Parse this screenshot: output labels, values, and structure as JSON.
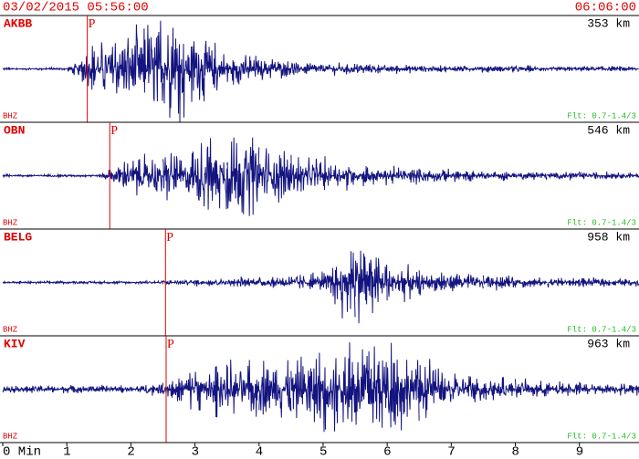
{
  "header": {
    "start": "03/02/2015 05:56:00",
    "end": "06:06:00"
  },
  "chart_data": {
    "type": "seismogram",
    "xlim": [
      0,
      9.93
    ],
    "xticks": [
      {
        "value": 0,
        "label": "0 Min"
      },
      1,
      2,
      3,
      4,
      5,
      6,
      7,
      8,
      9
    ],
    "x": [
      0,
      0.5,
      1,
      1.5,
      2,
      2.5,
      3,
      3.5,
      4,
      4.5,
      5,
      5.5,
      6,
      6.5,
      7,
      7.5,
      8,
      8.5,
      9,
      9.5
    ],
    "color": "#141480",
    "traces": [
      {
        "station": "AKBB",
        "distance": "353 km",
        "channel": "BHZ",
        "filter": "Flt: 0.7-1.4/3",
        "phase": "P",
        "p_arrival": 1.32,
        "envelope": [
          0.02,
          0.02,
          0.02,
          0.45,
          0.6,
          0.9,
          0.6,
          0.3,
          0.2,
          0.12,
          0.1,
          0.08,
          0.07,
          0.06,
          0.05,
          0.05,
          0.05,
          0.04,
          0.04,
          0.04
        ]
      },
      {
        "station": "OBN",
        "distance": "546 km",
        "channel": "BHZ",
        "filter": "Flt: 0.7-1.4/3",
        "phase": "P",
        "p_arrival": 1.67,
        "envelope": [
          0.02,
          0.02,
          0.02,
          0.02,
          0.3,
          0.35,
          0.5,
          0.75,
          0.6,
          0.35,
          0.25,
          0.18,
          0.15,
          0.12,
          0.1,
          0.08,
          0.07,
          0.06,
          0.06,
          0.05
        ]
      },
      {
        "station": "BELG",
        "distance": "958 km",
        "channel": "BHZ",
        "filter": "Flt: 0.7-1.4/3",
        "phase": "P",
        "p_arrival": 2.54,
        "envelope": [
          0.02,
          0.02,
          0.02,
          0.02,
          0.02,
          0.03,
          0.06,
          0.07,
          0.08,
          0.12,
          0.15,
          0.8,
          0.4,
          0.2,
          0.15,
          0.12,
          0.1,
          0.08,
          0.07,
          0.06
        ]
      },
      {
        "station": "KIV",
        "distance": "963 km",
        "channel": "BHZ",
        "filter": "Flt: 0.7-1.4/3",
        "phase": "P",
        "p_arrival": 2.55,
        "envelope": [
          0.06,
          0.06,
          0.06,
          0.06,
          0.06,
          0.1,
          0.35,
          0.4,
          0.45,
          0.55,
          0.7,
          0.75,
          0.7,
          0.5,
          0.3,
          0.2,
          0.15,
          0.12,
          0.1,
          0.1
        ]
      }
    ]
  }
}
